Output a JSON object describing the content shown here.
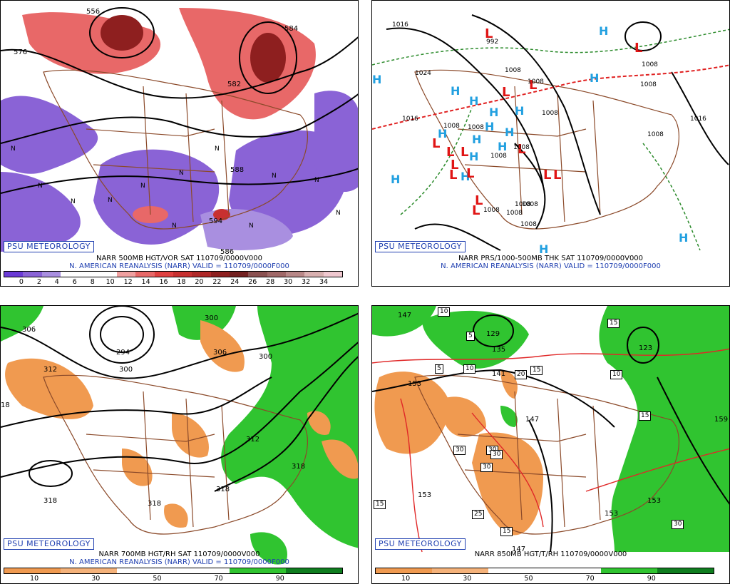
{
  "badge": "PSU METEOROLOGY",
  "panels": {
    "p1": {
      "line1": "NARR 500MB HGT/VOR SAT 110709/0000V000",
      "line2": "N. AMERICAN REANALYSIS (NARR) VALID = 110709/0000F000",
      "colorbar_ticks": [
        "0",
        "2",
        "4",
        "6",
        "8",
        "10",
        "12",
        "14",
        "16",
        "18",
        "20",
        "22",
        "24",
        "26",
        "28",
        "30",
        "32",
        "34"
      ],
      "contour_labels": [
        "576",
        "582",
        "588",
        "586",
        "556",
        "584",
        "594"
      ],
      "fill_labels": [
        "N",
        "N",
        "N",
        "N",
        "N",
        "N",
        "N",
        "N",
        "N",
        "N",
        "N",
        "N"
      ]
    },
    "p2": {
      "line1": "NARR PRS/1000-500MB THK SAT 110709/0000V000",
      "line2": "N. AMERICAN REANALYSIS (NARR) VALID = 110709/0000F000",
      "highs": [
        "H",
        "H",
        "H",
        "H",
        "H",
        "H",
        "H",
        "H",
        "H",
        "H",
        "H",
        "H",
        "H",
        "H",
        "H",
        "H",
        "H"
      ],
      "lows": [
        "L",
        "L",
        "L",
        "L",
        "L",
        "L",
        "L",
        "L",
        "L",
        "L",
        "L",
        "L",
        "L",
        "L",
        "L"
      ],
      "isobar_labels": [
        "1016",
        "1024",
        "1016",
        "1008",
        "1008",
        "1008",
        "1008",
        "1008",
        "1008",
        "1008",
        "1008",
        "1008",
        "1008",
        "1016",
        "1008",
        "1008",
        "1008",
        "1008",
        "1008",
        "992"
      ]
    },
    "p3": {
      "line1": "NARR 700MB HGT/RH SAT 110709/0000V000",
      "line2": "N. AMERICAN REANALYSIS (NARR) VALID = 110709/0000F000",
      "colorbar_ticks": [
        "10",
        "30",
        "50",
        "70",
        "90"
      ],
      "contour_labels": [
        "306",
        "300",
        "312",
        "18",
        "306",
        "300",
        "294",
        "300",
        "312",
        "318",
        "318",
        "318",
        "318"
      ]
    },
    "p4": {
      "line1": "NARR 850MB HGT/T/RH 110709/0000V000",
      "colorbar_ticks": [
        "10",
        "30",
        "50",
        "70",
        "90"
      ],
      "contour_labels": [
        "147",
        "153",
        "141",
        "135",
        "147",
        "147",
        "153",
        "153",
        "153",
        "159",
        "123",
        "129"
      ],
      "boxed_labels": [
        "10",
        "5",
        "5",
        "15",
        "10",
        "20",
        "15",
        "10",
        "15",
        "15",
        "30",
        "30",
        "30",
        "30",
        "25",
        "15",
        "30"
      ]
    }
  },
  "colors": {
    "vort_scale": [
      "#6b3bd6",
      "#8a63d6",
      "#a98fe0",
      "#fff",
      "#fff",
      "#fff",
      "#f0a0a0",
      "#e86868",
      "#e04040",
      "#c83030",
      "#b02828",
      "#8e1f1f",
      "#732020",
      "#8a5050",
      "#a06868",
      "#b88888",
      "#d8b0b0",
      "#f0c8d0"
    ],
    "rh_scale": [
      "#f09a50",
      "#f5b27a",
      "#fff",
      "#fff",
      "#30c430",
      "#0f7d1f"
    ],
    "map_outline": "#8b4a2a"
  }
}
